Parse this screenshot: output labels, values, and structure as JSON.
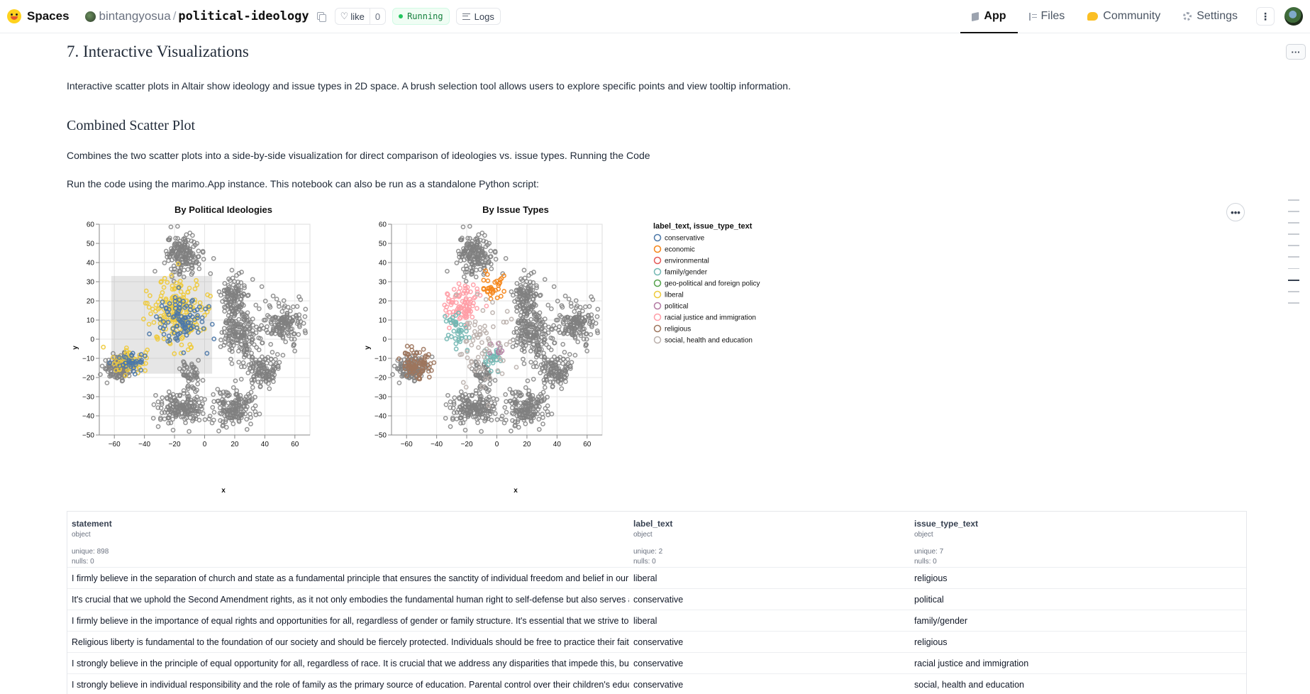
{
  "topbar": {
    "spaces_label": "Spaces",
    "owner": "bintangyosua",
    "separator": "/",
    "repo": "political-ideology",
    "like_label": "like",
    "like_count": "0",
    "status": "Running",
    "logs_label": "Logs",
    "tabs": [
      {
        "label": "App",
        "icon": "app-icon",
        "active": true
      },
      {
        "label": "Files",
        "icon": "files-icon",
        "active": false
      },
      {
        "label": "Community",
        "icon": "community-icon",
        "active": false
      },
      {
        "label": "Settings",
        "icon": "settings-icon",
        "active": false
      }
    ],
    "more_glyph": "⋮"
  },
  "main": {
    "heading": "7. Interactive Visualizations",
    "intro": "Interactive scatter plots in Altair show ideology and issue types in 2D space. A brush selection tool allows users to explore specific points and view tooltip information.",
    "subheading": "Combined Scatter Plot",
    "combined_text": "Combines the two scatter plots into a side-by-side visualization for direct comparison of ideologies vs. issue types. Running the Code",
    "run_text": "Run the code using the marimo.App instance. This notebook can also be run as a standalone Python script:",
    "cell_menu_glyph": "···",
    "chart_menu_glyph": "•••"
  },
  "chart_data": [
    {
      "type": "scatter",
      "title": "By Political Ideologies",
      "xlabel": "x",
      "ylabel": "y",
      "xlim": [
        -70,
        70
      ],
      "ylim": [
        -50,
        60
      ],
      "xticks": [
        -60,
        -40,
        -20,
        0,
        20,
        40,
        60
      ],
      "yticks": [
        -50,
        -40,
        -30,
        -20,
        -10,
        0,
        10,
        20,
        30,
        40,
        50,
        60
      ],
      "grid": true,
      "brush": {
        "x": [
          -62,
          5
        ],
        "y": [
          -18,
          33
        ]
      },
      "highlighted_series": [
        {
          "name": "liberal",
          "color": "#eeca3b",
          "regions": [
            {
              "cx": -18,
              "cy": 14,
              "rx": 16,
              "ry": 16,
              "n": 190
            },
            {
              "cx": -50,
              "cy": -11,
              "rx": 10,
              "ry": 5,
              "n": 50
            }
          ]
        },
        {
          "name": "conservative",
          "color": "#4c78a8",
          "regions": [
            {
              "cx": -16,
              "cy": 10,
              "rx": 14,
              "ry": 14,
              "n": 100
            },
            {
              "cx": -48,
              "cy": -12,
              "rx": 9,
              "ry": 5,
              "n": 35
            }
          ]
        }
      ],
      "unselected_color": "#808080"
    },
    {
      "type": "scatter",
      "title": "By Issue Types",
      "xlabel": "x",
      "ylabel": "y",
      "xlim": [
        -70,
        70
      ],
      "ylim": [
        -50,
        60
      ],
      "xticks": [
        -60,
        -40,
        -20,
        0,
        20,
        40,
        60
      ],
      "yticks": [
        -50,
        -40,
        -30,
        -20,
        -10,
        0,
        10,
        20,
        30,
        40,
        50,
        60
      ],
      "grid": true,
      "highlighted_series": [
        {
          "name": "racial justice and immigration",
          "color": "#ff9da6",
          "regions": [
            {
              "cx": -22,
              "cy": 18,
              "rx": 12,
              "ry": 9,
              "n": 90
            }
          ]
        },
        {
          "name": "family/gender",
          "color": "#72b7b2",
          "regions": [
            {
              "cx": -27,
              "cy": 5,
              "rx": 7,
              "ry": 9,
              "n": 40
            },
            {
              "cx": -2,
              "cy": -10,
              "rx": 8,
              "ry": 5,
              "n": 25
            }
          ]
        },
        {
          "name": "economic",
          "color": "#f58518",
          "regions": [
            {
              "cx": -2,
              "cy": 26,
              "rx": 6,
              "ry": 6,
              "n": 30
            }
          ]
        },
        {
          "name": "religious",
          "color": "#9d755d",
          "regions": [
            {
              "cx": -54,
              "cy": -13,
              "rx": 10,
              "ry": 7,
              "n": 80
            }
          ]
        },
        {
          "name": "political",
          "color": "#b279a2",
          "regions": [
            {
              "cx": 0,
              "cy": -7,
              "rx": 6,
              "ry": 4,
              "n": 8
            }
          ]
        },
        {
          "name": "social, health and education",
          "color": "#bab0ac",
          "regions": [
            {
              "cx": -10,
              "cy": -3,
              "rx": 16,
              "ry": 22,
              "n": 70
            }
          ]
        }
      ],
      "unselected_color": "#808080"
    }
  ],
  "gray_clusters": [
    {
      "cx": -15,
      "cy": 44,
      "rx": 12,
      "ry": 10,
      "n": 170
    },
    {
      "cx": 20,
      "cy": 20,
      "rx": 8,
      "ry": 12,
      "n": 130
    },
    {
      "cx": 24,
      "cy": 3,
      "rx": 13,
      "ry": 13,
      "n": 160
    },
    {
      "cx": 52,
      "cy": 8,
      "rx": 12,
      "ry": 11,
      "n": 150
    },
    {
      "cx": 38,
      "cy": -16,
      "rx": 11,
      "ry": 9,
      "n": 120
    },
    {
      "cx": 20,
      "cy": -36,
      "rx": 14,
      "ry": 9,
      "n": 160
    },
    {
      "cx": -15,
      "cy": -36,
      "rx": 16,
      "ry": 9,
      "n": 180
    },
    {
      "cx": -10,
      "cy": -18,
      "rx": 7,
      "ry": 6,
      "n": 50
    },
    {
      "cx": -57,
      "cy": -15,
      "rx": 12,
      "ry": 6,
      "n": 120
    }
  ],
  "legend": {
    "title": "label_text, issue_type_text",
    "items": [
      {
        "label": "conservative",
        "color": "#4c78a8"
      },
      {
        "label": "economic",
        "color": "#f58518"
      },
      {
        "label": "environmental",
        "color": "#e45756"
      },
      {
        "label": "family/gender",
        "color": "#72b7b2"
      },
      {
        "label": "geo-political and foreign policy",
        "color": "#54a24b"
      },
      {
        "label": "liberal",
        "color": "#eeca3b"
      },
      {
        "label": "political",
        "color": "#b279a2"
      },
      {
        "label": "racial justice and immigration",
        "color": "#ff9da6"
      },
      {
        "label": "religious",
        "color": "#9d755d"
      },
      {
        "label": "social, health and education",
        "color": "#bab0ac"
      }
    ]
  },
  "table": {
    "columns": [
      {
        "name": "statement",
        "type": "object",
        "unique": "unique: 898",
        "nulls": "nulls: 0"
      },
      {
        "name": "label_text",
        "type": "object",
        "unique": "unique: 2",
        "nulls": "nulls: 0"
      },
      {
        "name": "issue_type_text",
        "type": "object",
        "unique": "unique: 7",
        "nulls": "nulls: 0"
      }
    ],
    "rows": [
      {
        "statement": "I firmly believe in the separation of church and state as a fundamental principle that ensures the sanctity of individual freedom and belief in our di",
        "label_text": "liberal",
        "issue_type_text": "religious"
      },
      {
        "statement": "It's crucial that we uphold the Second Amendment rights, as it not only embodies the fundamental human right to self-defense but also serves as a",
        "label_text": "conservative",
        "issue_type_text": "political"
      },
      {
        "statement": "I firmly believe in the importance of equal rights and opportunities for all, regardless of gender or family structure. It's essential that we strive to d",
        "label_text": "liberal",
        "issue_type_text": "family/gender"
      },
      {
        "statement": "Religious liberty is fundamental to the foundation of our society and should be fiercely protected. Individuals should be free to practice their faith",
        "label_text": "conservative",
        "issue_type_text": "religious"
      },
      {
        "statement": "I strongly believe in the principle of equal opportunity for all, regardless of race. It is crucial that we address any disparities that impede this, but I",
        "label_text": "conservative",
        "issue_type_text": "racial justice and immigration"
      },
      {
        "statement": "I strongly believe in individual responsibility and the role of family as the primary source of education. Parental control over their children's educat",
        "label_text": "conservative",
        "issue_type_text": "social, health and education"
      }
    ]
  }
}
